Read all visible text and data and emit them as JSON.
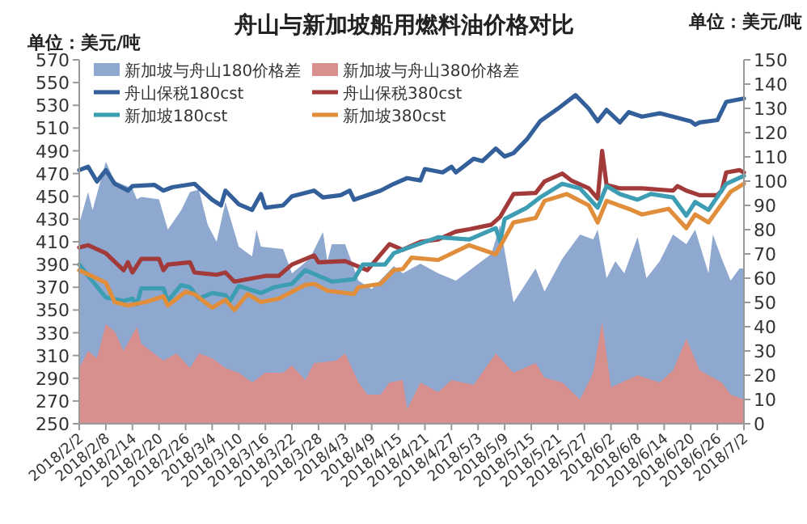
{
  "chart_data": {
    "type": "line",
    "title": "舟山与新加坡船用燃料油价格对比",
    "ylabel": "单位：美元/吨",
    "y2label": "单位：美元/吨",
    "legend": "top",
    "xlim": [
      "2018-02-02",
      "2018-07-02"
    ],
    "xticks": [
      {
        "value": "2018-02-02",
        "label": "2018/2/2"
      },
      {
        "value": "2018-02-08",
        "label": "2018/2/8"
      },
      {
        "value": "2018-02-14",
        "label": "2018/2/14"
      },
      {
        "value": "2018-02-20",
        "label": "2018/2/20"
      },
      {
        "value": "2018-02-26",
        "label": "2018/2/26"
      },
      {
        "value": "2018-03-04",
        "label": "2018/3/4"
      },
      {
        "value": "2018-03-10",
        "label": "2018/3/10"
      },
      {
        "value": "2018-03-16",
        "label": "2018/3/16"
      },
      {
        "value": "2018-03-22",
        "label": "2018/3/22"
      },
      {
        "value": "2018-03-28",
        "label": "2018/3/28"
      },
      {
        "value": "2018-04-03",
        "label": "2018/4/3"
      },
      {
        "value": "2018-04-09",
        "label": "2018/4/9"
      },
      {
        "value": "2018-04-15",
        "label": "2018/4/15"
      },
      {
        "value": "2018-04-21",
        "label": "2018/4/21"
      },
      {
        "value": "2018-04-27",
        "label": "2018/4/27"
      },
      {
        "value": "2018-05-03",
        "label": "2018/5/3"
      },
      {
        "value": "2018-05-09",
        "label": "2018/5/9"
      },
      {
        "value": "2018-05-15",
        "label": "2018/5/15"
      },
      {
        "value": "2018-05-21",
        "label": "2018/5/21"
      },
      {
        "value": "2018-05-27",
        "label": "2018/5/27"
      },
      {
        "value": "2018-06-02",
        "label": "2018/6/2"
      },
      {
        "value": "2018-06-08",
        "label": "2018/6/8"
      },
      {
        "value": "2018-06-14",
        "label": "2018/6/14"
      },
      {
        "value": "2018-06-20",
        "label": "2018/6/20"
      },
      {
        "value": "2018-06-26",
        "label": "2018/6/26"
      },
      {
        "value": "2018-07-02",
        "label": "2018/7/2"
      }
    ],
    "ylim": [
      250,
      570
    ],
    "yticks": [
      250,
      270,
      290,
      310,
      330,
      350,
      370,
      390,
      410,
      430,
      450,
      470,
      490,
      510,
      530,
      550,
      570
    ],
    "y2lim": [
      0,
      150
    ],
    "y2ticks": [
      0,
      10,
      20,
      30,
      40,
      50,
      60,
      70,
      80,
      90,
      100,
      110,
      120,
      130,
      140,
      150
    ],
    "series": [
      {
        "name": "新加坡与舟山180价格差",
        "type": "area",
        "axis": "y2",
        "color": "#8fa8d0",
        "x": [
          "2018-02-02",
          "2018-02-04",
          "2018-02-05",
          "2018-02-08",
          "2018-02-10",
          "2018-02-14",
          "2018-02-15",
          "2018-02-16",
          "2018-02-20",
          "2018-02-22",
          "2018-02-25",
          "2018-02-27",
          "2018-03-01",
          "2018-03-03",
          "2018-03-05",
          "2018-03-07",
          "2018-03-10",
          "2018-03-13",
          "2018-03-14",
          "2018-03-15",
          "2018-03-20",
          "2018-03-22",
          "2018-03-26",
          "2018-03-29",
          "2018-03-30",
          "2018-03-31",
          "2018-04-03",
          "2018-04-06",
          "2018-04-09",
          "2018-04-14",
          "2018-04-16",
          "2018-04-20",
          "2018-04-24",
          "2018-04-28",
          "2018-05-06",
          "2018-05-08",
          "2018-05-11",
          "2018-05-16",
          "2018-05-18",
          "2018-05-22",
          "2018-05-26",
          "2018-05-29",
          "2018-05-30",
          "2018-06-01",
          "2018-06-03",
          "2018-06-05",
          "2018-06-08",
          "2018-06-10",
          "2018-06-13",
          "2018-06-16",
          "2018-06-19",
          "2018-06-21",
          "2018-06-24",
          "2018-06-25",
          "2018-06-27",
          "2018-06-29",
          "2018-07-01",
          "2018-07-02"
        ],
        "values": [
          82.5,
          95.5,
          88,
          108,
          100,
          97,
          92.5,
          93.5,
          92.5,
          80,
          88,
          95.5,
          96.5,
          82,
          75,
          91.5,
          73,
          69,
          80,
          73,
          72,
          62,
          68,
          79,
          67,
          74,
          74,
          59,
          55.5,
          65,
          62,
          66,
          62,
          59,
          70,
          82,
          50,
          64,
          54.5,
          68,
          78,
          76,
          80,
          60,
          67,
          62,
          77,
          60,
          67,
          78,
          74,
          80,
          62,
          78,
          68,
          59,
          64,
          64
        ]
      },
      {
        "name": "新加坡与舟山380价格差",
        "type": "area",
        "axis": "y2",
        "color": "#d8908e",
        "x": [
          "2018-02-02",
          "2018-02-04",
          "2018-02-06",
          "2018-02-08",
          "2018-02-10",
          "2018-02-12",
          "2018-02-15",
          "2018-02-16",
          "2018-02-21",
          "2018-02-24",
          "2018-02-27",
          "2018-03-01",
          "2018-03-04",
          "2018-03-07",
          "2018-03-10",
          "2018-03-13",
          "2018-03-16",
          "2018-03-20",
          "2018-03-22",
          "2018-03-25",
          "2018-03-27",
          "2018-04-01",
          "2018-04-03",
          "2018-04-06",
          "2018-04-08",
          "2018-04-11",
          "2018-04-13",
          "2018-04-16",
          "2018-04-17",
          "2018-04-20",
          "2018-04-24",
          "2018-04-27",
          "2018-05-02",
          "2018-05-07",
          "2018-05-11",
          "2018-05-16",
          "2018-05-18",
          "2018-05-22",
          "2018-05-26",
          "2018-05-29",
          "2018-05-31",
          "2018-06-02",
          "2018-06-08",
          "2018-06-13",
          "2018-06-16",
          "2018-06-19",
          "2018-06-22",
          "2018-06-27",
          "2018-06-29",
          "2018-07-02"
        ],
        "values": [
          23,
          30,
          27,
          41,
          38,
          30,
          40,
          33,
          26,
          29,
          23,
          29,
          27,
          23,
          21,
          17,
          21,
          21,
          24,
          18,
          25,
          26,
          29,
          17,
          12,
          12,
          17,
          18,
          6,
          17,
          13,
          18,
          16,
          29,
          21,
          25,
          19,
          17,
          10,
          21,
          42,
          15,
          20,
          17,
          22,
          35,
          22,
          17,
          12,
          10
        ]
      },
      {
        "name": "舟山保税180cst",
        "color": "#33609a",
        "x": [
          "2018-02-02",
          "2018-02-04",
          "2018-02-06",
          "2018-02-08",
          "2018-02-10",
          "2018-02-13",
          "2018-02-14",
          "2018-02-19",
          "2018-02-21",
          "2018-02-23",
          "2018-02-28",
          "2018-03-04",
          "2018-03-06",
          "2018-03-07",
          "2018-03-10",
          "2018-03-13",
          "2018-03-15",
          "2018-03-16",
          "2018-03-20",
          "2018-03-22",
          "2018-03-27",
          "2018-03-29",
          "2018-04-02",
          "2018-04-04",
          "2018-04-05",
          "2018-04-11",
          "2018-04-14",
          "2018-04-17",
          "2018-04-20",
          "2018-04-21",
          "2018-04-25",
          "2018-04-27",
          "2018-04-28",
          "2018-05-02",
          "2018-05-04",
          "2018-05-07",
          "2018-05-09",
          "2018-05-11",
          "2018-05-14",
          "2018-05-17",
          "2018-05-21",
          "2018-05-25",
          "2018-05-28",
          "2018-05-30",
          "2018-06-01",
          "2018-06-04",
          "2018-06-06",
          "2018-06-09",
          "2018-06-13",
          "2018-06-16",
          "2018-06-20",
          "2018-06-21",
          "2018-06-22",
          "2018-06-26",
          "2018-06-28",
          "2018-07-02"
        ],
        "values": [
          473,
          476,
          463,
          473,
          461,
          455,
          459,
          460,
          455,
          458,
          461,
          447,
          442,
          455,
          443,
          438,
          452,
          440,
          442,
          450,
          455,
          449,
          451,
          455,
          447,
          455,
          461,
          466,
          464,
          474,
          471,
          476,
          471,
          483,
          481,
          492,
          485,
          488,
          500,
          516,
          527,
          539,
          527,
          516,
          526,
          515,
          524,
          520,
          523,
          520,
          516,
          513,
          515,
          517,
          533,
          536
        ]
      },
      {
        "name": "舟山保税380cst",
        "color": "#a33a3a",
        "x": [
          "2018-02-02",
          "2018-02-04",
          "2018-02-08",
          "2018-02-12",
          "2018-02-13",
          "2018-02-14",
          "2018-02-16",
          "2018-02-20",
          "2018-02-21",
          "2018-02-22",
          "2018-02-27",
          "2018-02-28",
          "2018-03-05",
          "2018-03-07",
          "2018-03-09",
          "2018-03-16",
          "2018-03-19",
          "2018-03-22",
          "2018-03-27",
          "2018-03-28",
          "2018-04-03",
          "2018-04-08",
          "2018-04-13",
          "2018-04-16",
          "2018-04-20",
          "2018-04-24",
          "2018-04-28",
          "2018-05-01",
          "2018-05-06",
          "2018-05-08",
          "2018-05-11",
          "2018-05-16",
          "2018-05-18",
          "2018-05-22",
          "2018-05-24",
          "2018-05-28",
          "2018-05-30",
          "2018-05-31",
          "2018-06-01",
          "2018-06-04",
          "2018-06-09",
          "2018-06-16",
          "2018-06-17",
          "2018-06-19",
          "2018-06-22",
          "2018-06-26",
          "2018-06-27",
          "2018-06-28",
          "2018-07-01",
          "2018-07-02"
        ],
        "values": [
          405,
          407,
          400,
          385,
          392,
          383,
          395,
          395,
          385,
          390,
          392,
          383,
          381,
          383,
          375,
          380,
          380,
          390,
          398,
          392,
          393,
          385,
          408,
          403,
          410,
          412,
          419,
          421,
          425,
          432,
          452,
          453,
          463,
          470,
          464,
          457,
          448,
          490,
          460,
          457,
          457,
          455,
          459,
          455,
          451,
          451,
          455,
          471,
          473,
          471
        ]
      },
      {
        "name": "新加坡180cst",
        "color": "#3d9db3",
        "x": [
          "2018-02-02",
          "2018-02-04",
          "2018-02-08",
          "2018-02-12",
          "2018-02-14",
          "2018-02-15",
          "2018-02-16",
          "2018-02-21",
          "2018-02-22",
          "2018-02-25",
          "2018-02-27",
          "2018-03-01",
          "2018-03-04",
          "2018-03-07",
          "2018-03-08",
          "2018-03-10",
          "2018-03-15",
          "2018-03-18",
          "2018-03-22",
          "2018-03-25",
          "2018-03-28",
          "2018-03-31",
          "2018-04-05",
          "2018-04-07",
          "2018-04-12",
          "2018-04-14",
          "2018-04-16",
          "2018-04-24",
          "2018-05-01",
          "2018-05-07",
          "2018-05-08",
          "2018-05-09",
          "2018-05-14",
          "2018-05-17",
          "2018-05-22",
          "2018-05-26",
          "2018-05-30",
          "2018-06-01",
          "2018-06-04",
          "2018-06-08",
          "2018-06-11",
          "2018-06-16",
          "2018-06-19",
          "2018-06-21",
          "2018-06-24",
          "2018-06-28",
          "2018-07-02"
        ],
        "values": [
          390,
          380,
          361,
          358,
          360,
          355,
          369,
          369,
          358,
          372,
          370,
          360,
          365,
          363,
          358,
          371,
          365,
          370,
          373,
          385,
          380,
          375,
          377,
          390,
          390,
          400,
          403,
          414,
          412,
          422,
          410,
          430,
          440,
          449,
          461,
          457,
          440,
          459,
          452,
          447,
          452,
          449,
          433,
          445,
          438,
          461,
          468
        ]
      },
      {
        "name": "新加坡380cst",
        "color": "#e08e3c",
        "x": [
          "2018-02-02",
          "2018-02-08",
          "2018-02-10",
          "2018-02-13",
          "2018-02-17",
          "2018-02-21",
          "2018-02-22",
          "2018-02-26",
          "2018-02-28",
          "2018-03-04",
          "2018-03-07",
          "2018-03-09",
          "2018-03-12",
          "2018-03-15",
          "2018-03-19",
          "2018-03-25",
          "2018-03-27",
          "2018-03-30",
          "2018-04-05",
          "2018-04-06",
          "2018-04-11",
          "2018-04-14",
          "2018-04-16",
          "2018-04-18",
          "2018-04-24",
          "2018-05-01",
          "2018-05-07",
          "2018-05-11",
          "2018-05-16",
          "2018-05-18",
          "2018-05-23",
          "2018-05-28",
          "2018-05-30",
          "2018-06-01",
          "2018-06-06",
          "2018-06-09",
          "2018-06-15",
          "2018-06-19",
          "2018-06-21",
          "2018-06-24",
          "2018-06-29",
          "2018-07-02"
        ],
        "values": [
          385,
          374,
          357,
          354,
          357,
          362,
          354,
          366,
          364,
          352,
          359,
          350,
          364,
          357,
          360,
          372,
          373,
          367,
          364,
          370,
          373,
          385,
          386,
          396,
          394,
          407,
          399,
          427,
          431,
          446,
          452,
          442,
          427,
          446,
          439,
          434,
          439,
          422,
          434,
          427,
          454,
          461
        ]
      }
    ]
  }
}
